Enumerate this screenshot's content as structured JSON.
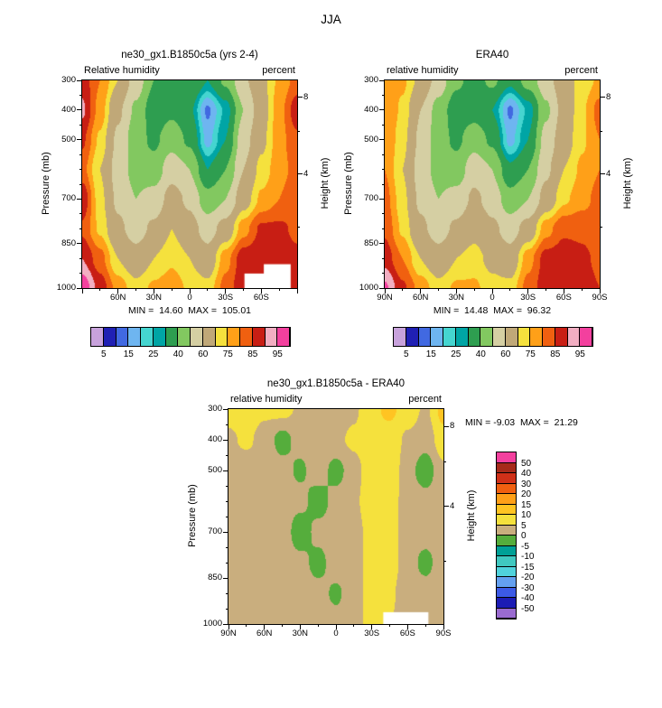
{
  "figure_title": "JJA",
  "rh_scale": {
    "levels": [
      5,
      10,
      15,
      20,
      25,
      30,
      40,
      50,
      60,
      70,
      75,
      80,
      85,
      90,
      95
    ],
    "colors": [
      "#C8A2DC",
      "#2020B4",
      "#4169E1",
      "#6EB5F0",
      "#45D5D0",
      "#00A5A5",
      "#2E9E50",
      "#82C860",
      "#D5CFA3",
      "#C0A878",
      "#F5E13D",
      "#FFA018",
      "#F06010",
      "#C81E14",
      "#F2AEC2",
      "#F3409E"
    ],
    "labels": [
      "5",
      "15",
      "25",
      "40",
      "60",
      "75",
      "85",
      "95"
    ]
  },
  "diff_scale": {
    "levels": [
      -50,
      -40,
      -30,
      -20,
      -15,
      -10,
      -5,
      0,
      5,
      10,
      15,
      20,
      30,
      40,
      50
    ],
    "colors": [
      "#9A6BD0",
      "#1C1CB4",
      "#3C5AE6",
      "#64A0F0",
      "#50D2DC",
      "#40C8C0",
      "#00A096",
      "#55AD3C",
      "#C9AE7E",
      "#F5E13D",
      "#FFC422",
      "#FFA018",
      "#F06010",
      "#D03018",
      "#A62A1A",
      "#F3409E"
    ],
    "labels": [
      "50",
      "40",
      "30",
      "20",
      "15",
      "10",
      "5",
      "0",
      "-5",
      "-10",
      "-15",
      "-20",
      "-30",
      "-40",
      "-50"
    ]
  },
  "chart_data": [
    {
      "type": "heatmap",
      "scale": "rh",
      "title": "ne30_gx1.B1850c5a (yrs 2-4)",
      "field_label": "Relative humidity",
      "units_label": "percent",
      "ylabel": "Pressure (mb)",
      "y2label": "Height (km)",
      "stats": "MIN =  14.60  MAX =  105.01",
      "min": 14.6,
      "max": 105.01,
      "x_label_ticks": [
        {
          "t": "60N",
          "v": 60
        },
        {
          "t": "30N",
          "v": 30
        },
        {
          "t": "0",
          "v": 0
        },
        {
          "t": "30S",
          "v": -30
        },
        {
          "t": "60S",
          "v": -60
        }
      ],
      "y_ticks": [
        300,
        400,
        500,
        700,
        850,
        1000
      ],
      "y2_ticks": [
        {
          "t": "8",
          "f": 0.081
        },
        {
          "t": "4",
          "f": 0.452
        }
      ],
      "x": [
        90,
        75,
        60,
        45,
        30,
        15,
        0,
        -15,
        -30,
        -45,
        -60,
        -75,
        -90
      ],
      "y": [
        300,
        400,
        500,
        600,
        700,
        800,
        900,
        1000
      ],
      "values": [
        [
          88,
          80,
          70,
          56,
          40,
          36,
          40,
          30,
          42,
          58,
          68,
          76,
          82
        ],
        [
          91,
          78,
          62,
          48,
          34,
          38,
          32,
          14,
          26,
          50,
          66,
          78,
          88
        ],
        [
          86,
          74,
          58,
          44,
          38,
          46,
          38,
          18,
          30,
          56,
          68,
          78,
          84
        ],
        [
          82,
          70,
          56,
          46,
          44,
          56,
          50,
          30,
          40,
          60,
          72,
          78,
          82
        ],
        [
          89,
          72,
          58,
          50,
          54,
          64,
          58,
          44,
          50,
          66,
          76,
          80,
          84
        ],
        [
          84,
          74,
          62,
          56,
          62,
          70,
          64,
          56,
          64,
          78,
          86,
          86,
          84
        ],
        [
          90,
          82,
          70,
          64,
          70,
          74,
          70,
          64,
          78,
          88,
          89,
          88,
          86
        ],
        [
          99,
          88,
          78,
          72,
          76,
          78,
          74,
          72,
          82,
          89,
          88,
          87,
          86
        ]
      ],
      "white_patches": [
        {
          "x": 0.755,
          "y": 0.93,
          "w": 0.145,
          "h": 0.07
        },
        {
          "x": 0.845,
          "y": 0.885,
          "w": 0.125,
          "h": 0.115
        }
      ]
    },
    {
      "type": "heatmap",
      "scale": "rh",
      "title": "ERA40",
      "field_label": "relative humidity",
      "units_label": "percent",
      "ylabel": "Pressure (mb)",
      "y2label": "Height (km)",
      "stats": "MIN =  14.48  MAX =  96.32",
      "min": 14.48,
      "max": 96.32,
      "x_label_ticks": [
        {
          "t": "90N",
          "v": 90
        },
        {
          "t": "60N",
          "v": 60
        },
        {
          "t": "30N",
          "v": 30
        },
        {
          "t": "0",
          "v": 0
        },
        {
          "t": "30S",
          "v": -30
        },
        {
          "t": "60S",
          "v": -60
        },
        {
          "t": "90S",
          "v": -90
        }
      ],
      "y_ticks": [
        300,
        400,
        500,
        700,
        850,
        1000
      ],
      "y2_ticks": [
        {
          "t": "8",
          "f": 0.081
        },
        {
          "t": "4",
          "f": 0.452
        }
      ],
      "x": [
        90,
        75,
        60,
        45,
        30,
        15,
        0,
        -15,
        -30,
        -45,
        -60,
        -75,
        -90
      ],
      "y": [
        300,
        400,
        500,
        600,
        700,
        800,
        900,
        1000
      ],
      "values": [
        [
          78,
          76,
          68,
          56,
          42,
          36,
          42,
          32,
          44,
          56,
          66,
          72,
          76
        ],
        [
          80,
          74,
          60,
          46,
          34,
          36,
          30,
          14,
          26,
          48,
          64,
          74,
          82
        ],
        [
          80,
          72,
          58,
          44,
          38,
          46,
          38,
          18,
          30,
          54,
          66,
          74,
          80
        ],
        [
          80,
          70,
          56,
          46,
          44,
          56,
          50,
          32,
          40,
          58,
          70,
          76,
          80
        ],
        [
          82,
          72,
          58,
          50,
          54,
          62,
          56,
          44,
          50,
          64,
          74,
          78,
          82
        ],
        [
          84,
          74,
          62,
          56,
          62,
          68,
          62,
          56,
          64,
          78,
          84,
          84,
          82
        ],
        [
          88,
          80,
          70,
          64,
          70,
          72,
          68,
          64,
          78,
          87,
          88,
          86,
          84
        ],
        [
          96,
          86,
          78,
          72,
          76,
          76,
          72,
          72,
          82,
          88,
          89,
          87,
          85
        ]
      ],
      "white_patches": []
    },
    {
      "type": "heatmap",
      "scale": "diff",
      "title": "ne30_gx1.B1850c5a - ERA40",
      "field_label": "relative humidity",
      "units_label": "percent",
      "ylabel": "Pressure (mb)",
      "y2label": "Height (km)",
      "stats": "MIN = -9.03  MAX =  21.29",
      "min": -9.03,
      "max": 21.29,
      "x_label_ticks": [
        {
          "t": "90N",
          "v": 90
        },
        {
          "t": "60N",
          "v": 60
        },
        {
          "t": "30N",
          "v": 30
        },
        {
          "t": "0",
          "v": 0
        },
        {
          "t": "30S",
          "v": -30
        },
        {
          "t": "60S",
          "v": -60
        },
        {
          "t": "90S",
          "v": -90
        }
      ],
      "y_ticks": [
        300,
        400,
        500,
        700,
        850,
        1000
      ],
      "y2_ticks": [
        {
          "t": "8",
          "f": 0.081
        },
        {
          "t": "4",
          "f": 0.452
        }
      ],
      "x": [
        90,
        75,
        60,
        45,
        30,
        15,
        0,
        -15,
        -30,
        -45,
        -60,
        -75,
        -90
      ],
      "y": [
        300,
        400,
        500,
        600,
        700,
        800,
        900,
        1000
      ],
      "values": [
        [
          7,
          8,
          6,
          7,
          4,
          3,
          2,
          4,
          9,
          11,
          8,
          4,
          12
        ],
        [
          4,
          6,
          3,
          -2,
          2,
          3,
          4,
          6,
          9,
          8,
          4,
          2,
          8
        ],
        [
          3,
          2,
          3,
          2,
          -1,
          3,
          -2,
          3,
          8,
          9,
          2,
          -3,
          4
        ],
        [
          2,
          3,
          4,
          3,
          2,
          -3,
          2,
          4,
          8,
          7,
          3,
          2,
          3
        ],
        [
          3,
          2,
          3,
          4,
          -4,
          2,
          3,
          3,
          7,
          8,
          2,
          3,
          2
        ],
        [
          2,
          3,
          2,
          3,
          2,
          -2,
          3,
          4,
          6,
          7,
          3,
          -2,
          4
        ],
        [
          3,
          2,
          3,
          2,
          3,
          2,
          -1,
          3,
          7,
          6,
          2,
          3,
          3
        ],
        [
          2,
          3,
          2,
          3,
          2,
          3,
          2,
          4,
          6,
          5,
          3,
          2,
          3
        ]
      ],
      "white_patches": [
        {
          "x": 0.72,
          "y": 0.945,
          "w": 0.21,
          "h": 0.055
        }
      ]
    }
  ]
}
